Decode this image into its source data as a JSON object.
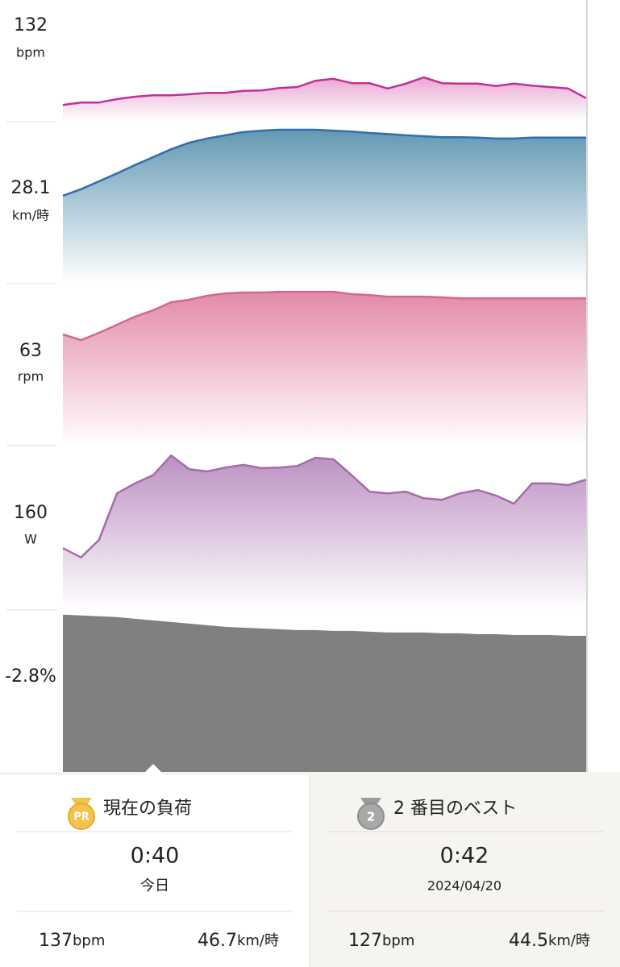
{
  "chart_data": [
    {
      "type": "area",
      "label": "132",
      "unit": "bpm",
      "color": "#c0309a",
      "fill": "#e7a3cf",
      "fade": true,
      "ylim": [
        120,
        145
      ],
      "values": [
        123.3,
        123.8,
        123.8,
        124.5,
        125,
        125.3,
        125.3,
        125.5,
        125.8,
        125.8,
        126.2,
        126.3,
        126.8,
        127,
        128.3,
        128.7,
        127.8,
        127.8,
        126.7,
        127.7,
        129,
        127.8,
        127.7,
        127.7,
        127.2,
        127.7,
        127.3,
        127,
        126.7,
        124.7
      ]
    },
    {
      "type": "area",
      "label": "28.1",
      "unit": "km/時",
      "color": "#2f6db5",
      "fill": "#5a93ae",
      "fade": true,
      "ylim": [
        0,
        35
      ],
      "values": [
        18.9,
        20.3,
        22,
        23.7,
        25.5,
        27.2,
        28.9,
        30.3,
        31.2,
        31.9,
        32.6,
        32.9,
        33.1,
        33.1,
        33.1,
        32.9,
        32.7,
        32.4,
        32.2,
        31.9,
        31.7,
        31.5,
        31.5,
        31.4,
        31.2,
        31.2,
        31.4,
        31.4,
        31.4,
        31.4
      ]
    },
    {
      "type": "area",
      "label": "63",
      "unit": "rpm",
      "color": "#d8658f",
      "fill": "#df84a5",
      "fade": true,
      "ylim": [
        0,
        110
      ],
      "values": [
        75.5,
        71.7,
        76.6,
        82.1,
        87.6,
        91.9,
        97.4,
        99.1,
        101.8,
        103.4,
        104,
        104,
        104.5,
        104.5,
        104.5,
        104.5,
        102.9,
        102.3,
        101.2,
        101.2,
        101.2,
        100.7,
        100.1,
        100.1,
        100.1,
        100.1,
        100.1,
        100.1,
        100.1,
        100.1
      ]
    },
    {
      "type": "area",
      "label": "160",
      "unit": "W",
      "color": "#a86aab",
      "fill": "#b88bbf",
      "fade": true,
      "ylim": [
        0,
        300
      ],
      "values": [
        113,
        96,
        128,
        213,
        231,
        246,
        282,
        257,
        253,
        260,
        265,
        259,
        260,
        263,
        278,
        275,
        246,
        216,
        213,
        216,
        204,
        201,
        213,
        219,
        209,
        194,
        231,
        231,
        228,
        238
      ]
    },
    {
      "type": "area",
      "label": "-2.8%",
      "color": "#808080",
      "fill": "#808080",
      "fade": false,
      "ylim": [
        -6,
        0
      ],
      "values": [
        -0.21,
        -0.24,
        -0.27,
        -0.3,
        -0.36,
        -0.42,
        -0.48,
        -0.54,
        -0.6,
        -0.66,
        -0.69,
        -0.72,
        -0.75,
        -0.78,
        -0.78,
        -0.81,
        -0.81,
        -0.84,
        -0.87,
        -0.87,
        -0.87,
        -0.9,
        -0.9,
        -0.93,
        -0.93,
        -0.96,
        -0.96,
        -0.96,
        -0.99,
        -0.99
      ]
    }
  ],
  "comparison": {
    "current": {
      "badge": "PR",
      "title": "現在の負荷",
      "time": "0:40",
      "date": "今日",
      "stats": [
        {
          "value": "137",
          "unit": "bpm"
        },
        {
          "value": "46.7",
          "unit": "km/時"
        }
      ]
    },
    "best": {
      "badge": "2",
      "title": "2 番目のベスト",
      "time": "0:42",
      "date": "2024/04/20",
      "stats": [
        {
          "value": "127",
          "unit": "bpm"
        },
        {
          "value": "44.5",
          "unit": "km/時"
        }
      ]
    }
  }
}
